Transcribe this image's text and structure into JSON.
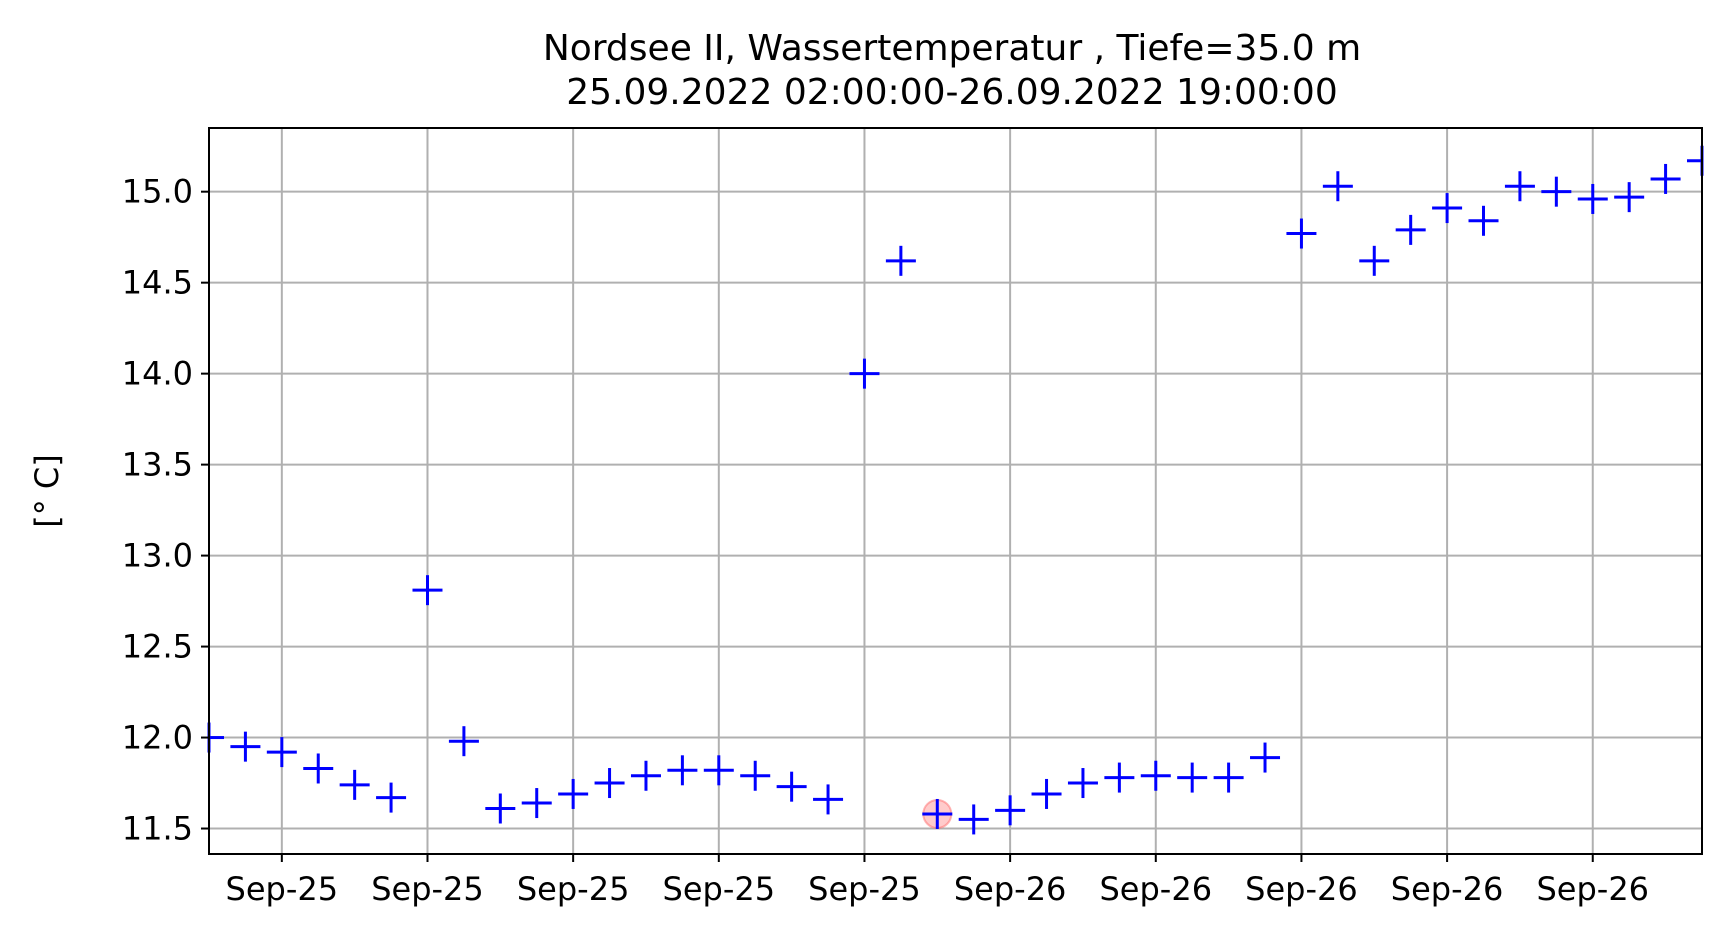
{
  "chart_data": {
    "type": "scatter",
    "marker": "+",
    "marker_color": "#0000ff",
    "highlight_color": "#ff6b6b",
    "grid": true,
    "title_lines": [
      "Nordsee II, Wassertemperatur , Tiefe=35.0 m",
      "25.09.2022 02:00:00-26.09.2022 19:00:00"
    ],
    "xlabel": "",
    "ylabel": "[° C]",
    "ylim": [
      11.36,
      15.35
    ],
    "xlim": [
      "2022-09-25 02:00",
      "2022-09-26 19:00"
    ],
    "x_ticks": [
      "2022-09-25 04:00",
      "2022-09-25 08:00",
      "2022-09-25 12:00",
      "2022-09-25 16:00",
      "2022-09-25 20:00",
      "2022-09-26 00:00",
      "2022-09-26 04:00",
      "2022-09-26 08:00",
      "2022-09-26 12:00",
      "2022-09-26 16:00"
    ],
    "x_tick_labels": [
      "Sep-25",
      "Sep-25",
      "Sep-25",
      "Sep-25",
      "Sep-25",
      "Sep-26",
      "Sep-26",
      "Sep-26",
      "Sep-26",
      "Sep-26"
    ],
    "y_ticks": [
      11.5,
      12.0,
      12.5,
      13.0,
      13.5,
      14.0,
      14.5,
      15.0
    ],
    "y_tick_labels": [
      "11.5",
      "12.0",
      "12.5",
      "13.0",
      "13.5",
      "14.0",
      "14.5",
      "15.0"
    ],
    "highlighted_x": "2022-09-25 22:00",
    "x": [
      "2022-09-25 02:00",
      "2022-09-25 03:00",
      "2022-09-25 04:00",
      "2022-09-25 05:00",
      "2022-09-25 06:00",
      "2022-09-25 07:00",
      "2022-09-25 08:00",
      "2022-09-25 09:00",
      "2022-09-25 10:00",
      "2022-09-25 11:00",
      "2022-09-25 12:00",
      "2022-09-25 13:00",
      "2022-09-25 14:00",
      "2022-09-25 15:00",
      "2022-09-25 16:00",
      "2022-09-25 17:00",
      "2022-09-25 18:00",
      "2022-09-25 19:00",
      "2022-09-25 20:00",
      "2022-09-25 21:00",
      "2022-09-25 22:00",
      "2022-09-25 23:00",
      "2022-09-26 00:00",
      "2022-09-26 01:00",
      "2022-09-26 02:00",
      "2022-09-26 03:00",
      "2022-09-26 04:00",
      "2022-09-26 05:00",
      "2022-09-26 06:00",
      "2022-09-26 07:00",
      "2022-09-26 08:00",
      "2022-09-26 09:00",
      "2022-09-26 10:00",
      "2022-09-26 11:00",
      "2022-09-26 12:00",
      "2022-09-26 13:00",
      "2022-09-26 14:00",
      "2022-09-26 15:00",
      "2022-09-26 16:00",
      "2022-09-26 17:00",
      "2022-09-26 18:00",
      "2022-09-26 19:00"
    ],
    "y": [
      12.0,
      11.95,
      11.92,
      11.83,
      11.74,
      11.67,
      12.81,
      11.98,
      11.61,
      11.64,
      11.69,
      11.75,
      11.79,
      11.82,
      11.82,
      11.79,
      11.73,
      11.66,
      14.0,
      14.62,
      11.58,
      11.55,
      11.6,
      11.69,
      11.75,
      11.78,
      11.79,
      11.78,
      11.78,
      11.89,
      14.77,
      15.03,
      14.62,
      14.79,
      14.91,
      14.84,
      15.03,
      15.0,
      14.96,
      14.97,
      15.07,
      15.17
    ]
  }
}
